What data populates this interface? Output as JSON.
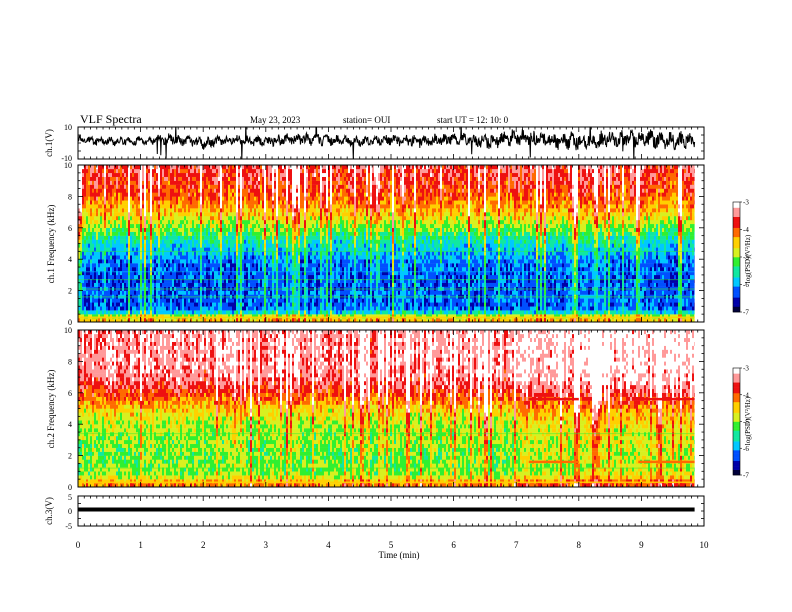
{
  "header": {
    "title": "VLF Spectra",
    "date": "May 23, 2023",
    "station": "station= OUI",
    "start": "start UT = 12: 10: 0"
  },
  "colors": {
    "colormap": [
      "#00003a",
      "#0000a8",
      "#0050ff",
      "#00c8ff",
      "#10e8a0",
      "#30f030",
      "#d8f020",
      "#ffd000",
      "#ff6a00",
      "#ee1010",
      "#ff9a9a",
      "#ffffff"
    ],
    "trace": "#000000"
  },
  "chart_data": [
    {
      "id": "ch1-waveform",
      "type": "line",
      "ylabel": "ch.1(V)",
      "ylim": [
        -10,
        10
      ],
      "yticks": [
        "10",
        "-10"
      ],
      "x": [
        0,
        0.5,
        1,
        1.5,
        2,
        2.5,
        3,
        3.5,
        4,
        4.5,
        5,
        5.5,
        6,
        6.5,
        7,
        7.5,
        8,
        8.5,
        9,
        9.5,
        9.85
      ],
      "y": [
        2,
        1,
        1.5,
        2.5,
        0,
        2,
        1,
        2.5,
        2,
        1,
        2,
        1,
        2.5,
        1,
        3,
        2,
        1,
        2,
        3,
        2,
        1
      ],
      "envelope": [
        3,
        3,
        3,
        4,
        4,
        3,
        4,
        4,
        4,
        3,
        4,
        4,
        4,
        5,
        6,
        6,
        6,
        6,
        6,
        6,
        6
      ]
    },
    {
      "id": "ch1-spectrogram",
      "type": "heatmap",
      "ylabel": "ch.1 Frequency (kHz)",
      "ylim": [
        0,
        10
      ],
      "yticks": [
        "0",
        "2",
        "4",
        "6",
        "8",
        "10"
      ],
      "xlim": [
        0,
        9.85
      ],
      "colorbar": {
        "label": "log(PSD)(V²/Hz)",
        "range": [
          -7,
          -3
        ],
        "ticks": [
          "-3",
          "-4",
          "-5",
          "-6",
          "-7"
        ]
      },
      "frequency_kHz": [
        0.25,
        0.75,
        1.25,
        1.75,
        2.25,
        2.75,
        3.25,
        3.75,
        4.25,
        4.75,
        5.25,
        5.75,
        6.25,
        6.75,
        7.25,
        7.75,
        8.25,
        8.75,
        9.25,
        9.75
      ],
      "mean_log_psd": [
        -4.5,
        -6.2,
        -6.3,
        -6.2,
        -6.3,
        -6.3,
        -6.3,
        -6.2,
        -6.0,
        -5.8,
        -5.6,
        -5.2,
        -4.9,
        -4.6,
        -4.3,
        -4.1,
        -3.9,
        -3.8,
        -3.7,
        -3.6
      ]
    },
    {
      "id": "ch2-spectrogram",
      "type": "heatmap",
      "ylabel": "ch.2 Frequency (kHz)",
      "ylim": [
        0,
        10
      ],
      "yticks": [
        "0",
        "2",
        "4",
        "6",
        "8",
        "10"
      ],
      "xlim": [
        0,
        9.85
      ],
      "colorbar": {
        "label": "log(PSD)(V²/Hz)",
        "range": [
          -7,
          -3
        ],
        "ticks": [
          "-3",
          "-4",
          "-5",
          "-6",
          "-7"
        ]
      },
      "frequency_kHz": [
        0.25,
        0.75,
        1.25,
        1.75,
        2.25,
        2.75,
        3.25,
        3.75,
        4.25,
        4.75,
        5.25,
        5.75,
        6.25,
        6.75,
        7.25,
        7.75,
        8.25,
        8.75,
        9.25,
        9.75
      ],
      "mean_log_psd": [
        -4.2,
        -5.0,
        -5.1,
        -5.1,
        -5.1,
        -5.0,
        -5.0,
        -4.9,
        -4.8,
        -4.6,
        -4.3,
        -4.0,
        -3.7,
        -3.5,
        -3.4,
        -3.3,
        -3.3,
        -3.3,
        -3.3,
        -3.3
      ],
      "tone_band_kHz": [
        1.6,
        5.6
      ],
      "tone_intervals_min": [
        [
          7.2,
          8.0
        ],
        [
          8.95,
          9.85
        ]
      ]
    },
    {
      "id": "ch3-waveform",
      "type": "line",
      "ylabel": "ch.3(V)",
      "ylim": [
        -5,
        5
      ],
      "yticks": [
        "5",
        "0",
        "-5"
      ],
      "x": [
        0,
        9.85
      ],
      "y": [
        0.5,
        0.5
      ],
      "xlabel": "Time (min)",
      "xticks": [
        "0",
        "1",
        "2",
        "3",
        "4",
        "5",
        "6",
        "7",
        "8",
        "9",
        "10"
      ],
      "xlim": [
        0,
        10
      ]
    }
  ]
}
